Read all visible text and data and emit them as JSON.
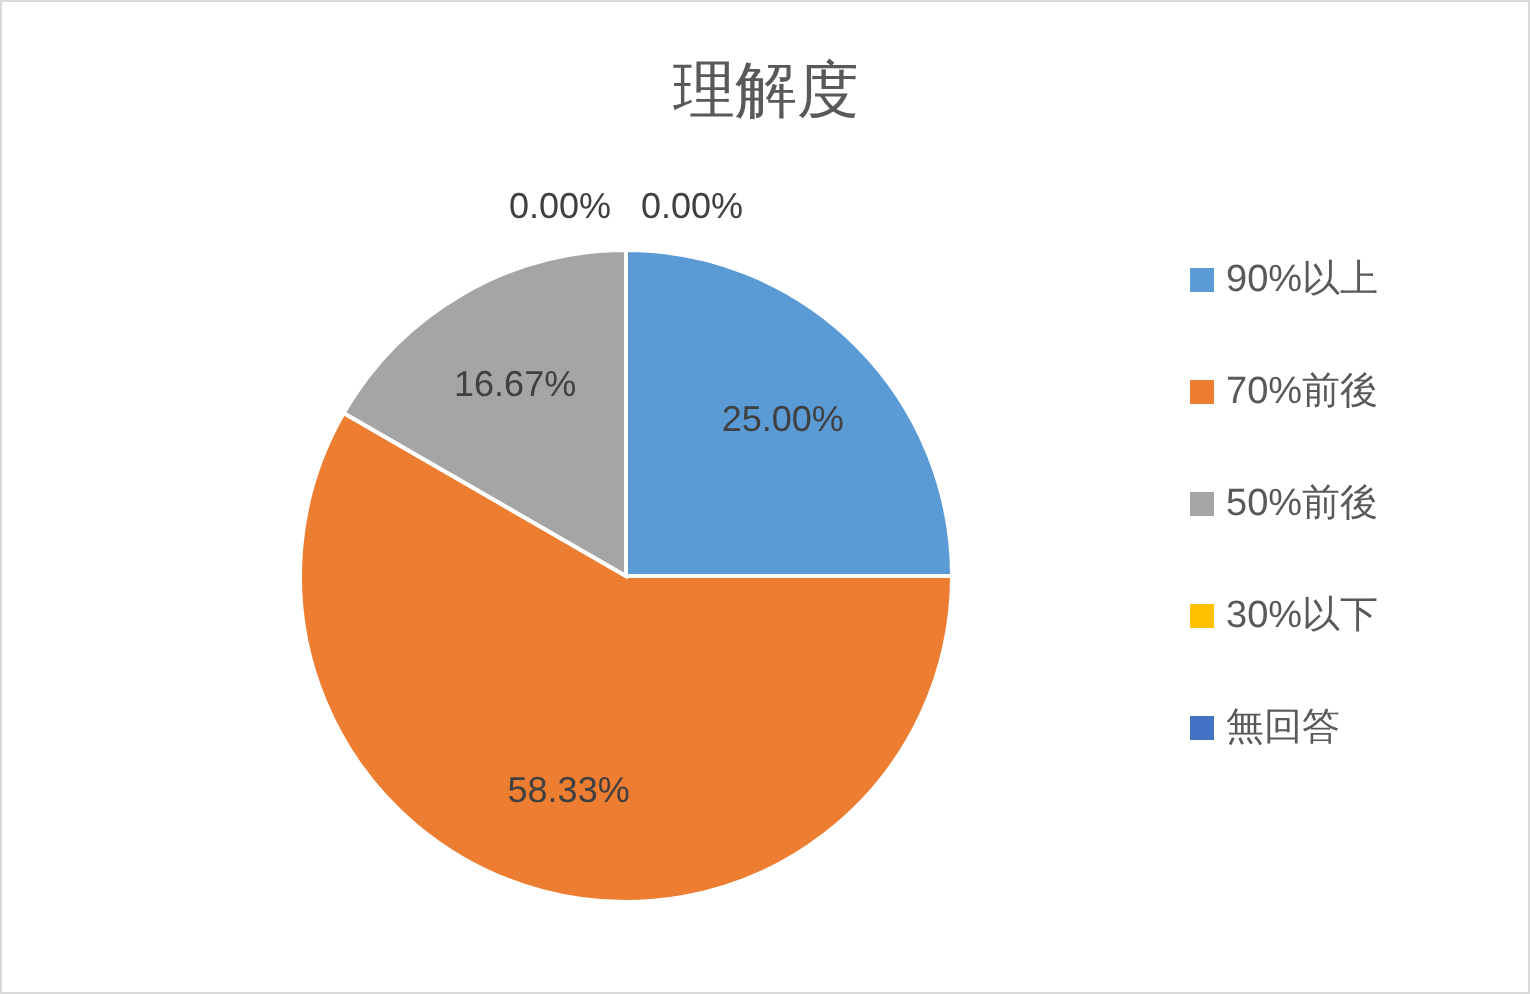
{
  "chart_data": {
    "type": "pie",
    "title": "理解度",
    "categories": [
      "90%以上",
      "70%前後",
      "50%前後",
      "30%以下",
      "無回答"
    ],
    "values": [
      25.0,
      58.33,
      16.67,
      0,
      0
    ],
    "colors": [
      "#5b9bd5",
      "#ed7d31",
      "#a5a5a5",
      "#ffc000",
      "#4472c4"
    ],
    "value_labels": [
      "25.00%",
      "58.33%",
      "16.67%",
      "0.00%",
      "0.00%"
    ],
    "legend": "right"
  }
}
